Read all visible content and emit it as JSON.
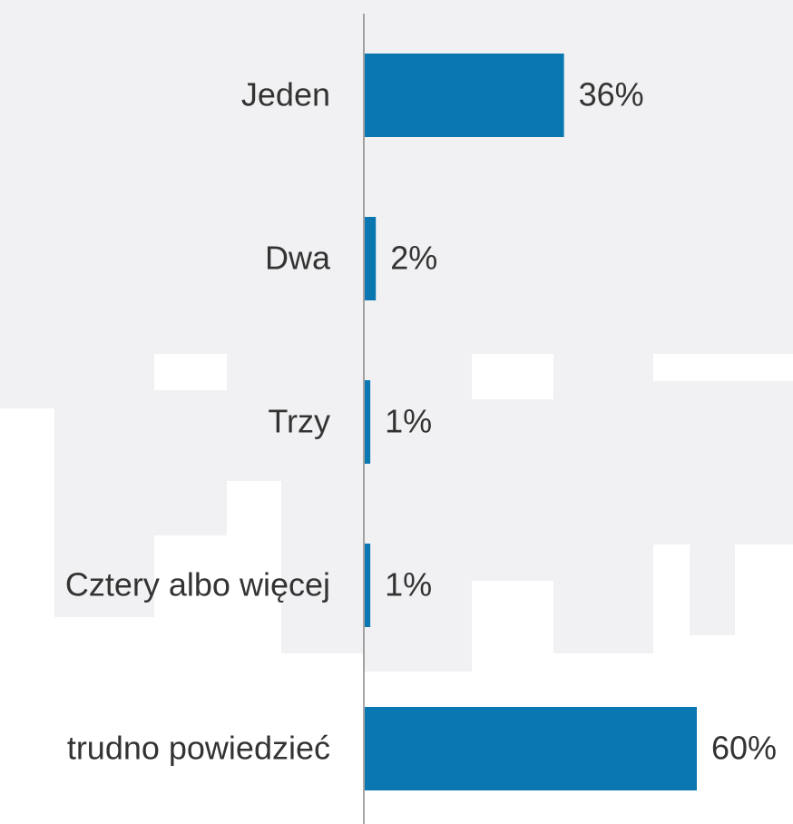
{
  "chart_data": {
    "type": "bar",
    "orientation": "horizontal",
    "categories": [
      "Jeden",
      "Dwa",
      "Trzy",
      "Cztery albo więcej",
      "trudno powiedzieć"
    ],
    "values": [
      36,
      2,
      1,
      1,
      60
    ],
    "value_labels": [
      "36%",
      "2%",
      "1%",
      "1%",
      "60%"
    ],
    "color": "#0a77b0"
  }
}
